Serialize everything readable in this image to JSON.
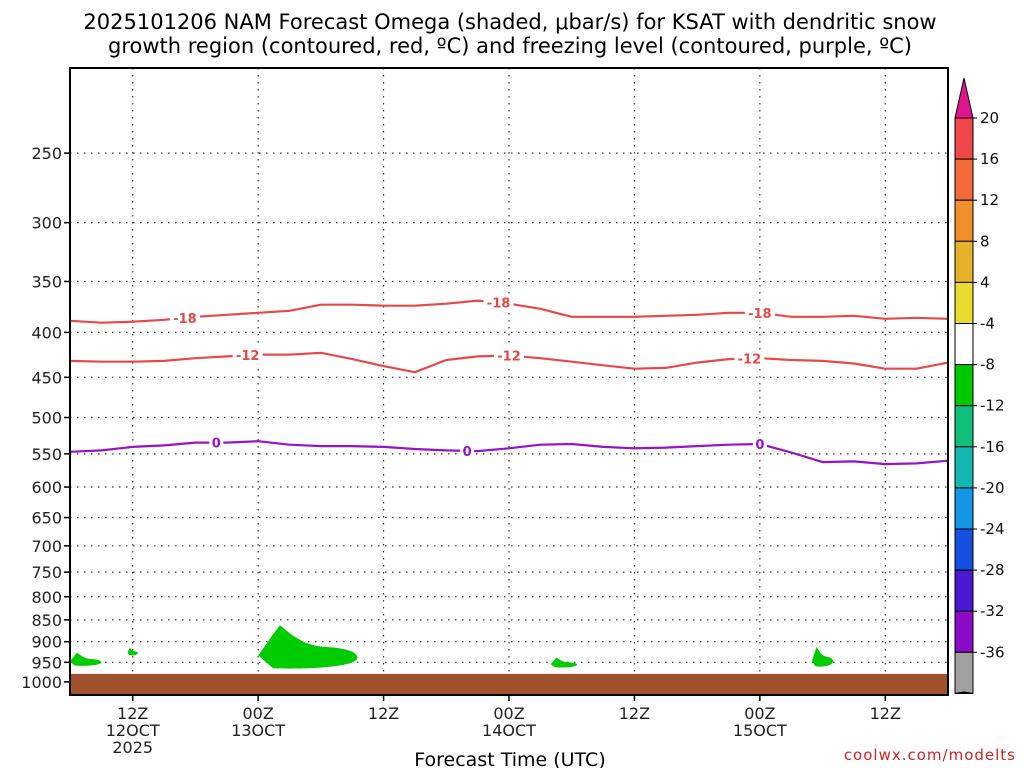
{
  "chart_data": {
    "type": "time-height cross section",
    "title": [
      "2025101206 NAM Forecast Omega (shaded, μbar/s) for KSAT with dendritic snow",
      "growth region (contoured, red, ºC) and freezing level (contoured, purple, ºC)"
    ],
    "xlabel": "Forecast Time (UTC)",
    "watermark": "coolwx.com/modelts",
    "pressure_ticks": [
      250,
      300,
      350,
      400,
      450,
      500,
      550,
      600,
      650,
      700,
      750,
      800,
      850,
      900,
      950,
      1000
    ],
    "ylim_hPa": [
      200,
      1035
    ],
    "xlim_hours": [
      6,
      90
    ],
    "time_ticks": [
      {
        "hour": 12,
        "lines": [
          "12Z",
          "12OCT",
          "2025"
        ]
      },
      {
        "hour": 24,
        "lines": [
          "00Z",
          "13OCT"
        ]
      },
      {
        "hour": 36,
        "lines": [
          "12Z"
        ]
      },
      {
        "hour": 48,
        "lines": [
          "00Z",
          "14OCT"
        ]
      },
      {
        "hour": 60,
        "lines": [
          "12Z"
        ]
      },
      {
        "hour": 72,
        "lines": [
          "00Z",
          "15OCT"
        ]
      },
      {
        "hour": 84,
        "lines": [
          "12Z"
        ]
      }
    ],
    "contours": [
      {
        "name": "-18C isotherm",
        "label": "-18",
        "color": "#e84848",
        "hours": [
          6,
          9,
          12,
          15,
          18,
          21,
          24,
          27,
          30,
          33,
          36,
          39,
          42,
          45,
          48,
          51,
          54,
          57,
          60,
          63,
          66,
          69,
          72,
          75,
          78,
          81,
          84,
          87,
          90
        ],
        "pressure": [
          388,
          390,
          389,
          387,
          384,
          382,
          380,
          378,
          372,
          372,
          373,
          373,
          371,
          368,
          371,
          376,
          384,
          384,
          384,
          383,
          382,
          380,
          380,
          384,
          384,
          383,
          386,
          385,
          386
        ],
        "label_hours": [
          17,
          47,
          72
        ]
      },
      {
        "name": "-12C isotherm",
        "label": "-12",
        "color": "#e84848",
        "hours": [
          6,
          9,
          12,
          15,
          18,
          21,
          24,
          27,
          30,
          33,
          36,
          39,
          42,
          45,
          48,
          51,
          54,
          57,
          60,
          63,
          66,
          69,
          72,
          75,
          78,
          81,
          84,
          87,
          90
        ],
        "pressure": [
          431,
          432,
          432,
          431,
          428,
          426,
          424,
          424,
          422,
          429,
          437,
          444,
          430,
          426,
          425,
          428,
          432,
          436,
          440,
          439,
          433,
          429,
          428,
          430,
          431,
          434,
          440,
          440,
          433
        ],
        "label_hours": [
          23,
          48,
          71
        ]
      },
      {
        "name": "0C freezing level",
        "label": "0",
        "color": "#9a12c8",
        "hours": [
          6,
          9,
          12,
          15,
          18,
          21,
          24,
          27,
          30,
          33,
          36,
          39,
          42,
          45,
          48,
          51,
          54,
          57,
          60,
          63,
          66,
          69,
          72,
          75,
          78,
          81,
          84,
          87,
          90
        ],
        "pressure": [
          547,
          545,
          540,
          538,
          534,
          534,
          532,
          537,
          539,
          539,
          540,
          543,
          545,
          546,
          542,
          537,
          536,
          540,
          542,
          541,
          539,
          537,
          536,
          548,
          562,
          561,
          565,
          564,
          560
        ],
        "label_hours": [
          20,
          44,
          72
        ]
      }
    ],
    "shaded_regions": [
      {
        "omega_bin": "-8 to -4",
        "color": "#00cc00",
        "hours": [
          6.0,
          9.0
        ],
        "top_hPa": 926,
        "bottom_hPa": 958
      },
      {
        "omega_bin": "-8 to -4",
        "color": "#00cc00",
        "hours": [
          11.5,
          12.5
        ],
        "top_hPa": 914,
        "bottom_hPa": 932
      },
      {
        "omega_bin": "-8 to -4",
        "color": "#00cc00",
        "hours": [
          24.0,
          33.5
        ],
        "top_hPa": 862,
        "bottom_hPa": 965
      },
      {
        "omega_bin": "-8 to -4",
        "color": "#00cc00",
        "hours": [
          52.0,
          54.5
        ],
        "top_hPa": 938,
        "bottom_hPa": 962
      },
      {
        "omega_bin": "-8 to -4",
        "color": "#00cc00",
        "hours": [
          77.0,
          79.0
        ],
        "top_hPa": 912,
        "bottom_hPa": 960
      }
    ],
    "ground": {
      "color": "#a0522d",
      "description": "below surface"
    },
    "colorbar": {
      "tick_labels": [
        "20",
        "16",
        "12",
        "8",
        "4",
        "-4",
        "-8",
        "-12",
        "-16",
        "-20",
        "-24",
        "-28",
        "-32",
        "-36"
      ],
      "segment_colors": [
        "#e0148c",
        "#f04848",
        "#f46a3a",
        "#f0902a",
        "#e6b22a",
        "#e8dd2e",
        "#ffffff",
        "#00c800",
        "#10c07a",
        "#12b8b0",
        "#1496e6",
        "#1650e0",
        "#4a1ad2",
        "#8a0cc8",
        "#a0a0a0",
        "#000000"
      ]
    }
  }
}
